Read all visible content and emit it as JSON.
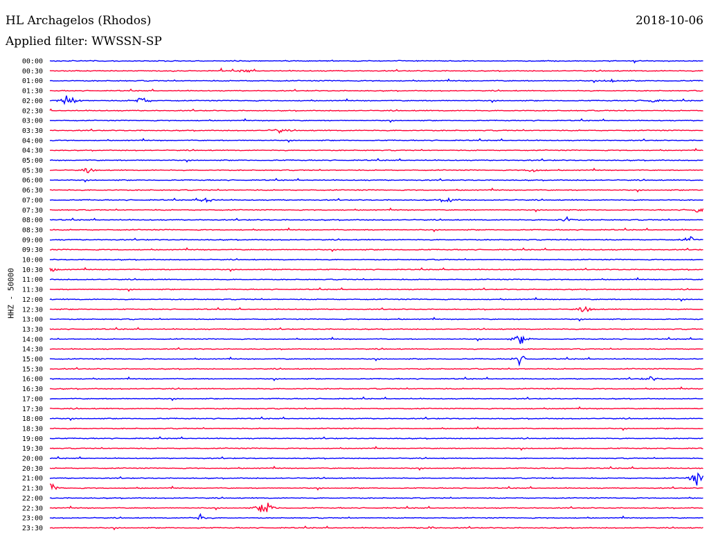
{
  "header": {
    "station": "HL Archagelos (Rhodos)",
    "date": "2018-10-06",
    "filter": "Applied filter: WWSSN-SP"
  },
  "chart_data": {
    "type": "line",
    "title": "HL Archagelos (Rhodos)",
    "date": "2018-10-06",
    "filter": "WWSSN-SP",
    "ylabel": "HHZ - 50000",
    "row_labels": [
      "00:00",
      "00:30",
      "01:00",
      "01:30",
      "02:00",
      "02:30",
      "03:00",
      "03:30",
      "04:00",
      "04:30",
      "05:00",
      "05:30",
      "06:00",
      "06:30",
      "07:00",
      "07:30",
      "08:00",
      "08:30",
      "09:00",
      "09:30",
      "10:00",
      "10:30",
      "11:00",
      "11:30",
      "12:00",
      "12:30",
      "13:00",
      "13:30",
      "14:00",
      "14:30",
      "15:00",
      "15:30",
      "16:00",
      "16:30",
      "17:00",
      "17:30",
      "18:00",
      "18:30",
      "19:00",
      "19:30",
      "20:00",
      "20:30",
      "21:00",
      "21:30",
      "22:00",
      "22:30",
      "23:00",
      "23:30"
    ],
    "series_colors": [
      "#0000ff",
      "#ff0033"
    ],
    "events": [
      {
        "row": "00:30",
        "pos": 0.3,
        "amp": 0.6
      },
      {
        "row": "01:00",
        "pos": 0.86,
        "amp": 0.9
      },
      {
        "row": "02:00",
        "pos": 0.03,
        "amp": 3.5
      },
      {
        "row": "02:00",
        "pos": 0.14,
        "amp": 1.8
      },
      {
        "row": "02:00",
        "pos": 0.92,
        "amp": 1.2
      },
      {
        "row": "03:30",
        "pos": 0.35,
        "amp": 1.0
      },
      {
        "row": "05:30",
        "pos": 0.06,
        "amp": 1.0
      },
      {
        "row": "05:30",
        "pos": 0.74,
        "amp": 1.0
      },
      {
        "row": "07:00",
        "pos": 0.24,
        "amp": 1.5
      },
      {
        "row": "07:00",
        "pos": 0.61,
        "amp": 1.2
      },
      {
        "row": "07:30",
        "pos": 0.99,
        "amp": 1.5
      },
      {
        "row": "08:00",
        "pos": 0.79,
        "amp": 1.2
      },
      {
        "row": "09:00",
        "pos": 0.98,
        "amp": 1.0
      },
      {
        "row": "10:30",
        "pos": 0.0,
        "amp": 1.0
      },
      {
        "row": "12:30",
        "pos": 0.82,
        "amp": 1.5
      },
      {
        "row": "14:00",
        "pos": 0.72,
        "amp": 1.8
      },
      {
        "row": "15:00",
        "pos": 0.72,
        "amp": 1.8
      },
      {
        "row": "16:00",
        "pos": 0.92,
        "amp": 0.8
      },
      {
        "row": "21:00",
        "pos": 0.99,
        "amp": 3.0
      },
      {
        "row": "21:30",
        "pos": 0.0,
        "amp": 2.0
      },
      {
        "row": "22:30",
        "pos": 0.33,
        "amp": 3.5
      },
      {
        "row": "23:00",
        "pos": 0.23,
        "amp": 1.2
      },
      {
        "row": "23:30",
        "pos": 0.58,
        "amp": 0.6
      }
    ]
  }
}
